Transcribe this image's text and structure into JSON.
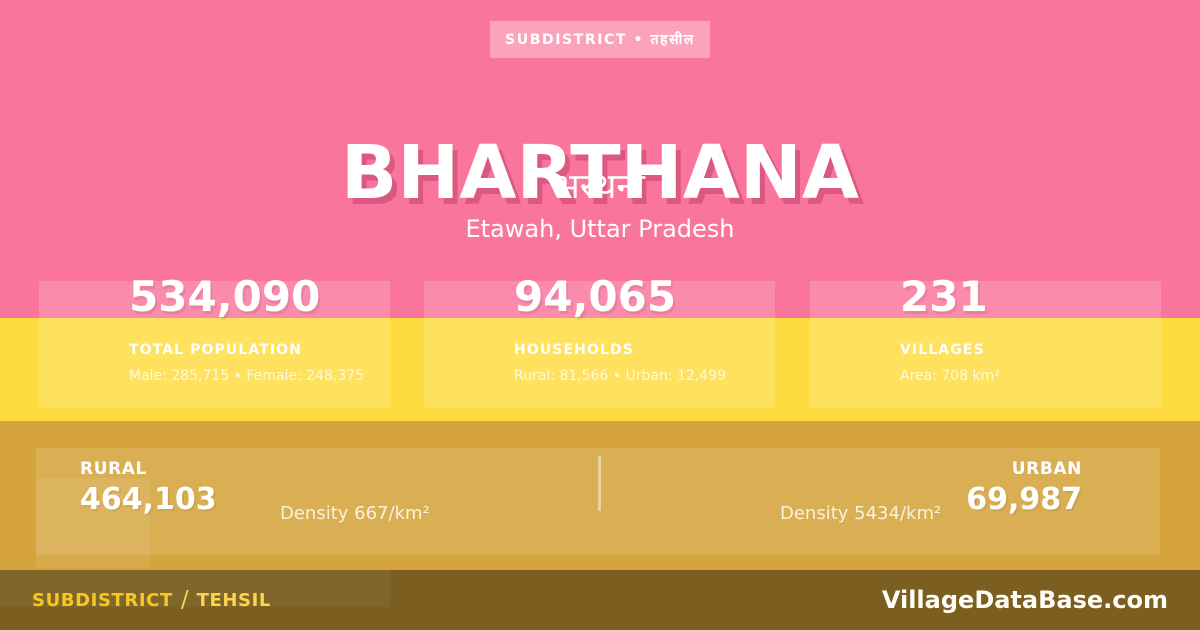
{
  "badge": {
    "label": "SUBDISTRICT • तहसील"
  },
  "header": {
    "title": "BHARTHANA",
    "title_native": "भरथना",
    "location": "Etawah, Uttar Pradesh"
  },
  "stats": [
    {
      "value": "534,090",
      "label": "TOTAL POPULATION",
      "detail": "Male: 285,715 • Female: 248,375"
    },
    {
      "value": "94,065",
      "label": "HOUSEHOLDS",
      "detail": "Rural: 81,566 • Urban: 12,499"
    },
    {
      "value": "231",
      "label": "VILLAGES",
      "detail": "Area: 708 km²"
    }
  ],
  "rural_urban": {
    "rural": {
      "label": "RURAL",
      "value": "464,103",
      "density": "Density 667/km²"
    },
    "urban": {
      "label": "URBAN",
      "value": "69,987",
      "density": "Density 5434/km²"
    }
  },
  "footer": {
    "type_label": "SUBDISTRICT",
    "separator": "/",
    "type_label_alt": "TEHSIL",
    "website": "VillageDataBase.com"
  },
  "colors": {
    "pink": "#FA759C",
    "yellow": "#FEDC40",
    "gold": "#D5A43C",
    "olive_bar": "#7B5E20",
    "footer_yellow": "#F8C822",
    "text_white": "#FFFFFF"
  }
}
